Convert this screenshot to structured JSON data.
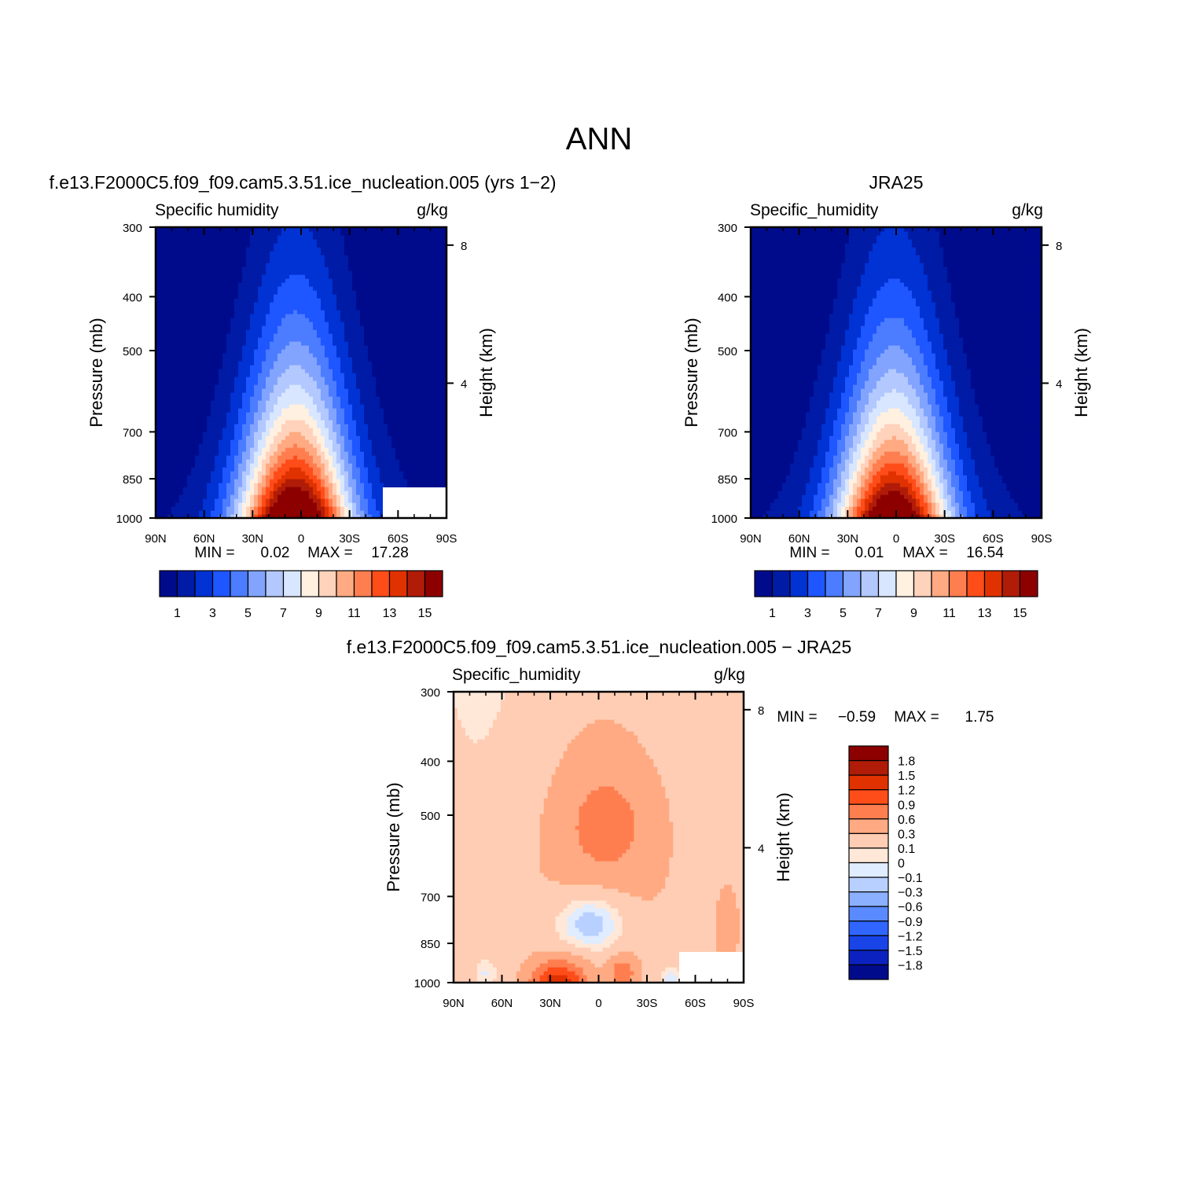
{
  "figure": {
    "title": "ANN"
  },
  "colors": {
    "abs_levels": [
      "#000b8c",
      "#001ba5",
      "#0032d4",
      "#1e56ff",
      "#4c7cff",
      "#82a4ff",
      "#b2c8ff",
      "#d8e6ff",
      "#fff0e0",
      "#ffd2bc",
      "#ffaa82",
      "#ff7e50",
      "#ff4d1a",
      "#e03200",
      "#b01c08",
      "#8c0000"
    ],
    "diff_levels": [
      "#8c0000",
      "#b01c08",
      "#e03200",
      "#ff4d1a",
      "#ff7e50",
      "#ffaa82",
      "#ffcdb4",
      "#ffe8d8",
      "#e0ecff",
      "#b8d0ff",
      "#8ab0ff",
      "#5a8aff",
      "#3066ff",
      "#1844e8",
      "#0c22c0",
      "#000b8c"
    ]
  },
  "panels": [
    {
      "id": "model",
      "title": "f.e13.F2000C5.f09_f09.cam5.3.51.ice_nucleation.005 (yrs 1−2)",
      "left_label": "Specific humidity",
      "right_label": "g/kg",
      "stats": {
        "min_label": "MIN =",
        "min": "0.02",
        "max_label": "MAX =",
        "max": "17.28"
      }
    },
    {
      "id": "obs",
      "title": "JRA25",
      "left_label": "Specific_humidity",
      "right_label": "g/kg",
      "stats": {
        "min_label": "MIN =",
        "min": "0.01",
        "max_label": "MAX =",
        "max": "16.54"
      }
    },
    {
      "id": "diff",
      "title": "f.e13.F2000C5.f09_f09.cam5.3.51.ice_nucleation.005 − JRA25",
      "left_label": "Specific_humidity",
      "right_label": "g/kg",
      "stats": {
        "min_label": "MIN =",
        "min": "−0.59",
        "max_label": "MAX =",
        "max": "1.75"
      }
    }
  ],
  "colorbars": {
    "abs_labels": [
      "1",
      "3",
      "5",
      "7",
      "9",
      "11",
      "13",
      "15"
    ],
    "diff_labels": [
      "1.8",
      "1.5",
      "1.2",
      "0.9",
      "0.6",
      "0.3",
      "0.1",
      "0",
      "−0.1",
      "−0.3",
      "−0.6",
      "−0.9",
      "−1.2",
      "−1.5",
      "−1.8"
    ]
  },
  "chart_data": [
    {
      "type": "heatmap",
      "title": "f.e13.F2000C5.f09_f09.cam5.3.51.ice_nucleation.005 (yrs 1−2)",
      "variable": "Specific humidity",
      "units": "g/kg",
      "xlabel": "",
      "ylabel": "Pressure (mb)",
      "y2label": "Height (km)",
      "x_ticks": [
        "90N",
        "60N",
        "30N",
        "0",
        "30S",
        "60S",
        "90S"
      ],
      "y_ticks": [
        "300",
        "400",
        "500",
        "700",
        "850",
        "1000"
      ],
      "y2_ticks": [
        "8",
        "4"
      ],
      "xlim": [
        90,
        -90
      ],
      "ylim": [
        1000,
        300
      ],
      "y_scale": "log",
      "levels": [
        1,
        2,
        3,
        4,
        5,
        6,
        7,
        8,
        9,
        10,
        11,
        12,
        13,
        14,
        15
      ],
      "min": 0.02,
      "max": 17.28,
      "surface_q_profile": [
        {
          "lat": 90,
          "q": 1.5
        },
        {
          "lat": 60,
          "q": 3
        },
        {
          "lat": 30,
          "q": 9
        },
        {
          "lat": 5,
          "q": 17
        },
        {
          "lat": -30,
          "q": 10
        },
        {
          "lat": -60,
          "q": 3
        },
        {
          "lat": -90,
          "q": 1
        }
      ]
    },
    {
      "type": "heatmap",
      "title": "JRA25",
      "variable": "Specific_humidity",
      "units": "g/kg",
      "xlabel": "",
      "ylabel": "Pressure (mb)",
      "y2label": "Height (km)",
      "x_ticks": [
        "90N",
        "60N",
        "30N",
        "0",
        "30S",
        "60S",
        "90S"
      ],
      "y_ticks": [
        "300",
        "400",
        "500",
        "700",
        "850",
        "1000"
      ],
      "y2_ticks": [
        "8",
        "4"
      ],
      "xlim": [
        90,
        -90
      ],
      "ylim": [
        1000,
        300
      ],
      "y_scale": "log",
      "levels": [
        1,
        2,
        3,
        4,
        5,
        6,
        7,
        8,
        9,
        10,
        11,
        12,
        13,
        14,
        15
      ],
      "min": 0.01,
      "max": 16.54,
      "surface_q_profile": [
        {
          "lat": 90,
          "q": 1.5
        },
        {
          "lat": 60,
          "q": 3
        },
        {
          "lat": 30,
          "q": 9
        },
        {
          "lat": 5,
          "q": 16.5
        },
        {
          "lat": -30,
          "q": 10
        },
        {
          "lat": -60,
          "q": 3
        },
        {
          "lat": -90,
          "q": 1
        }
      ]
    },
    {
      "type": "heatmap",
      "title": "f.e13.F2000C5.f09_f09.cam5.3.51.ice_nucleation.005 − JRA25",
      "variable": "Specific_humidity",
      "units": "g/kg",
      "xlabel": "",
      "ylabel": "Pressure (mb)",
      "y2label": "Height (km)",
      "x_ticks": [
        "90N",
        "60N",
        "30N",
        "0",
        "30S",
        "60S",
        "90S"
      ],
      "y_ticks": [
        "300",
        "400",
        "500",
        "700",
        "850",
        "1000"
      ],
      "y2_ticks": [
        "8",
        "4"
      ],
      "xlim": [
        90,
        -90
      ],
      "ylim": [
        1000,
        300
      ],
      "y_scale": "log",
      "levels": [
        -1.8,
        -1.5,
        -1.2,
        -0.9,
        -0.6,
        -0.3,
        -0.1,
        0,
        0.1,
        0.3,
        0.6,
        0.9,
        1.2,
        1.5,
        1.8
      ],
      "min": -0.59,
      "max": 1.75
    }
  ]
}
